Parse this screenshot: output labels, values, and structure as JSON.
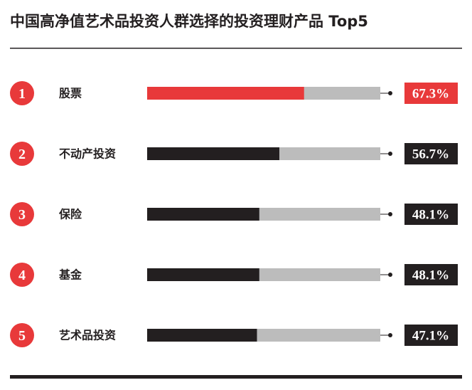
{
  "chart_data": {
    "type": "bar",
    "orientation": "horizontal",
    "title": "中国高净值艺术品投资人群选择的投资理财产品 Top5",
    "ranks": [
      "1",
      "2",
      "3",
      "4",
      "5"
    ],
    "categories": [
      "股票",
      "不动产投资",
      "保险",
      "基金",
      "艺术品投资"
    ],
    "values": [
      67.3,
      56.7,
      48.1,
      48.1,
      47.1
    ],
    "value_labels": [
      "67.3%",
      "56.7%",
      "48.1%",
      "48.1%",
      "47.1%"
    ],
    "colors": [
      "#e8393a",
      "#231f20",
      "#231f20",
      "#231f20",
      "#231f20"
    ],
    "track_color": "#bcbcbc",
    "rank_color": "#e8393a",
    "xlim": [
      0,
      100
    ]
  }
}
